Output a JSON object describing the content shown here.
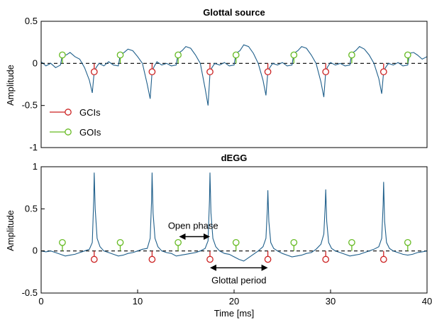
{
  "colors": {
    "signal": "#1f5f8b",
    "gci": "#cc2222",
    "goi": "#66bb22",
    "zero_line": "#000000",
    "axes": "#000000"
  },
  "chart_data": [
    {
      "type": "line",
      "title": "Glottal source",
      "xlabel": "",
      "ylabel": "Amplitude",
      "xlim": [
        0,
        40
      ],
      "ylim": [
        -1,
        0.5
      ],
      "yticks": [
        0.5,
        0,
        -0.5,
        -1
      ],
      "ytick_labels": [
        "0.5",
        "0",
        "-0.5",
        "-1"
      ],
      "grid": false,
      "legend": {
        "placement": "bottom-left",
        "entries": [
          {
            "label": "GCIs",
            "color": "#cc2222"
          },
          {
            "label": "GOIs",
            "color": "#66bb22"
          }
        ]
      },
      "gci_markers": {
        "x": [
          5.5,
          11.5,
          17.5,
          23.5,
          29.5,
          35.5
        ],
        "y": -0.1
      },
      "goi_markers": {
        "x": [
          2.2,
          8.2,
          14.2,
          20.2,
          26.2,
          32.2,
          38.0
        ],
        "y": 0.1
      },
      "series": [
        {
          "x": [
            0,
            0.5,
            1.0,
            1.5,
            2.0,
            2.2,
            2.6,
            3.0,
            3.5,
            4.0,
            4.5,
            5.0,
            5.3,
            5.5,
            5.7,
            6.0,
            6.5,
            7.0,
            7.5,
            8.0,
            8.2,
            8.6,
            9.0,
            9.5,
            10.0,
            10.5,
            11.0,
            11.3,
            11.5,
            11.7,
            12.0,
            12.5,
            13.0,
            13.5,
            14.0,
            14.2,
            14.6,
            15.0,
            15.5,
            16.0,
            16.5,
            17.0,
            17.3,
            17.5,
            17.7,
            18.0,
            18.5,
            19.0,
            19.5,
            20.0,
            20.2,
            20.6,
            21.0,
            21.5,
            22.0,
            22.5,
            23.0,
            23.3,
            23.5,
            23.7,
            24.0,
            24.5,
            25.0,
            25.5,
            26.0,
            26.2,
            26.6,
            27.0,
            27.5,
            28.0,
            28.5,
            29.0,
            29.3,
            29.5,
            29.7,
            30.0,
            30.5,
            31.0,
            31.5,
            32.0,
            32.2,
            32.6,
            33.0,
            33.5,
            34.0,
            34.5,
            35.0,
            35.3,
            35.5,
            35.7,
            36.0,
            36.5,
            37.0,
            37.5,
            38.0,
            38.2,
            38.6,
            39.0,
            39.5,
            40.0
          ],
          "y": [
            0.02,
            -0.03,
            0.0,
            -0.05,
            -0.02,
            0.1,
            0.1,
            0.13,
            0.08,
            0.05,
            -0.05,
            -0.2,
            -0.35,
            -0.1,
            -0.05,
            0.0,
            -0.03,
            0.02,
            -0.02,
            -0.03,
            0.1,
            0.13,
            0.17,
            0.15,
            0.08,
            0.0,
            -0.25,
            -0.42,
            -0.1,
            -0.04,
            0.02,
            -0.02,
            0.0,
            -0.03,
            -0.02,
            0.12,
            0.15,
            0.2,
            0.18,
            0.1,
            0.0,
            -0.3,
            -0.5,
            -0.12,
            -0.05,
            0.0,
            -0.02,
            0.01,
            -0.03,
            -0.02,
            0.12,
            0.15,
            0.22,
            0.2,
            0.12,
            0.0,
            -0.2,
            -0.38,
            -0.1,
            -0.05,
            0.0,
            -0.02,
            0.01,
            -0.03,
            -0.02,
            0.12,
            0.15,
            0.2,
            0.18,
            0.1,
            0.0,
            -0.22,
            -0.4,
            -0.1,
            -0.04,
            0.01,
            -0.02,
            0.0,
            -0.03,
            -0.02,
            0.12,
            0.15,
            0.2,
            0.17,
            0.1,
            0.0,
            -0.18,
            -0.36,
            -0.1,
            -0.05,
            0.0,
            -0.02,
            0.01,
            -0.03,
            -0.02,
            0.12,
            0.13,
            0.1,
            0.05,
            0.08
          ]
        }
      ]
    },
    {
      "type": "line",
      "title": "dEGG",
      "xlabel": "Time [ms]",
      "ylabel": "Amplitude",
      "xlim": [
        0,
        40
      ],
      "ylim": [
        -0.5,
        1
      ],
      "xticks": [
        0,
        10,
        20,
        30,
        40
      ],
      "xtick_labels": [
        "0",
        "10",
        "20",
        "30",
        "40"
      ],
      "yticks": [
        1,
        0.5,
        0,
        -0.5
      ],
      "ytick_labels": [
        "1",
        "0.5",
        "0",
        "-0.5"
      ],
      "grid": false,
      "gci_markers": {
        "x": [
          5.5,
          11.5,
          17.5,
          23.5,
          29.5,
          35.5
        ],
        "y": -0.1
      },
      "goi_markers": {
        "x": [
          2.2,
          8.2,
          14.2,
          20.2,
          26.2,
          32.2,
          38.0
        ],
        "y": 0.1
      },
      "annotations": [
        {
          "text": "Open phase",
          "from_x": 14.3,
          "to_x": 17.5,
          "y": 0.17
        },
        {
          "text": "Glottal period",
          "from_x": 17.5,
          "to_x": 23.5,
          "y": -0.2
        }
      ],
      "series": [
        {
          "x": [
            0,
            0.5,
            1.0,
            1.5,
            2.0,
            2.5,
            3.0,
            3.5,
            4.0,
            4.5,
            5.0,
            5.3,
            5.45,
            5.5,
            5.6,
            5.8,
            6.1,
            6.5,
            7.0,
            7.5,
            8.0,
            8.5,
            9.0,
            9.5,
            10.0,
            10.5,
            11.0,
            11.3,
            11.45,
            11.5,
            11.6,
            11.8,
            12.1,
            12.5,
            13.0,
            13.5,
            14.0,
            14.5,
            15.0,
            15.5,
            16.0,
            16.5,
            17.0,
            17.3,
            17.45,
            17.5,
            17.6,
            17.8,
            18.1,
            18.5,
            19.0,
            19.5,
            20.0,
            20.5,
            21.0,
            21.5,
            22.0,
            22.5,
            23.0,
            23.3,
            23.45,
            23.5,
            23.6,
            23.8,
            24.1,
            24.5,
            25.0,
            25.5,
            26.0,
            26.5,
            27.0,
            27.5,
            28.0,
            28.5,
            29.0,
            29.3,
            29.45,
            29.5,
            29.6,
            29.8,
            30.1,
            30.5,
            31.0,
            31.5,
            32.0,
            32.5,
            33.0,
            33.5,
            34.0,
            34.5,
            35.0,
            35.3,
            35.45,
            35.5,
            35.6,
            35.8,
            36.1,
            36.5,
            37.0,
            37.5,
            38.0,
            38.5,
            39.0,
            39.5,
            40.0
          ],
          "y": [
            0.0,
            -0.01,
            0.0,
            -0.02,
            -0.04,
            -0.06,
            -0.05,
            -0.04,
            -0.02,
            0.0,
            0.02,
            0.1,
            0.6,
            0.93,
            0.5,
            0.15,
            0.05,
            0.0,
            -0.02,
            -0.04,
            -0.06,
            -0.05,
            -0.03,
            -0.02,
            0.0,
            0.02,
            0.03,
            0.15,
            0.6,
            0.93,
            0.45,
            0.15,
            0.05,
            0.0,
            -0.02,
            -0.03,
            -0.06,
            -0.05,
            -0.04,
            -0.03,
            -0.02,
            0.0,
            0.03,
            0.12,
            0.6,
            0.93,
            0.45,
            0.15,
            0.05,
            0.0,
            -0.03,
            -0.04,
            -0.07,
            -0.1,
            -0.12,
            -0.08,
            -0.04,
            0.0,
            0.05,
            0.15,
            0.5,
            0.72,
            0.35,
            0.1,
            0.03,
            0.0,
            -0.03,
            -0.05,
            -0.07,
            -0.06,
            -0.05,
            -0.03,
            -0.02,
            0.02,
            0.08,
            0.2,
            0.55,
            0.73,
            0.35,
            0.1,
            0.03,
            0.0,
            -0.02,
            -0.04,
            -0.06,
            -0.05,
            -0.04,
            -0.02,
            0.0,
            0.02,
            0.05,
            0.15,
            0.55,
            0.82,
            0.35,
            0.1,
            0.03,
            0.0,
            -0.02,
            -0.04,
            -0.05,
            -0.04,
            -0.02,
            -0.01,
            0.0
          ]
        }
      ]
    }
  ]
}
